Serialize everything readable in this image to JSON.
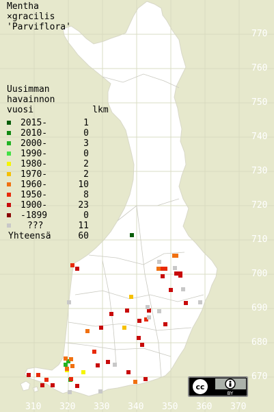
{
  "title": {
    "line1": "Mentha",
    "line2": "×gracilis",
    "line3": "'Parviflora'"
  },
  "legend": {
    "heading": [
      "Uusimman",
      "havainnon",
      "vuosi"
    ],
    "count_header": "lkm",
    "rows": [
      {
        "label": "2015-",
        "count": "1",
        "color": "#0a5d0a"
      },
      {
        "label": "2010-",
        "count": "0",
        "color": "#118811"
      },
      {
        "label": "2000-",
        "count": "3",
        "color": "#22b322"
      },
      {
        "label": "1990-",
        "count": "0",
        "color": "#44e044"
      },
      {
        "label": "1980-",
        "count": "2",
        "color": "#f5f500"
      },
      {
        "label": "1970-",
        "count": "2",
        "color": "#f5c000"
      },
      {
        "label": "1960-",
        "count": "10",
        "color": "#f07010"
      },
      {
        "label": "1950-",
        "count": "8",
        "color": "#e82a0a"
      },
      {
        "label": "1900-",
        "count": "23",
        "color": "#c80a0a"
      },
      {
        "label": "-1899",
        "count": "0",
        "color": "#8a0000"
      },
      {
        "label": "???",
        "count": "11",
        "color": "#c8c8c8"
      }
    ],
    "total_label": "Yhteensä",
    "total_count": "60"
  },
  "axes": {
    "y_ticks": [
      "770",
      "760",
      "750",
      "740",
      "730",
      "720",
      "710",
      "700",
      "690",
      "680",
      "670"
    ],
    "x_ticks": [
      "310",
      "320",
      "330",
      "340",
      "350",
      "360",
      "370"
    ]
  },
  "license_badge": {
    "text": "BY",
    "icons": [
      "cc-icon",
      "attribution-icon"
    ]
  }
}
